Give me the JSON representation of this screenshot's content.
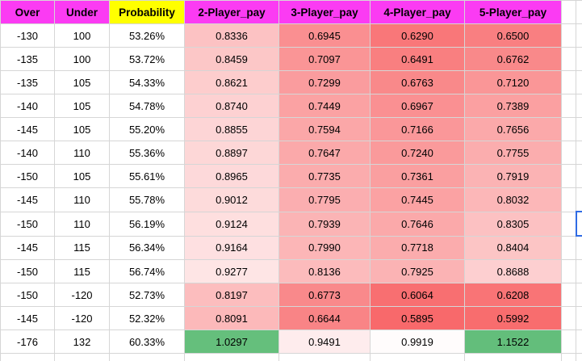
{
  "colors": {
    "header_magenta": "#fb3bf3",
    "header_yellow": "#ffff00",
    "gridline": "#d6d6d6",
    "selection_blue": "#2f6be4",
    "text": "#000000"
  },
  "columns": [
    {
      "key": "over",
      "label": "Over",
      "bg": "magenta"
    },
    {
      "key": "under",
      "label": "Under",
      "bg": "magenta"
    },
    {
      "key": "probability",
      "label": "Probability",
      "bg": "yellow"
    },
    {
      "key": "pay2",
      "label": "2-Player_pay",
      "bg": "magenta"
    },
    {
      "key": "pay3",
      "label": "3-Player_pay",
      "bg": "magenta"
    },
    {
      "key": "pay4",
      "label": "4-Player_pay",
      "bg": "magenta"
    },
    {
      "key": "pay5",
      "label": "5-Player_pay",
      "bg": "magenta"
    },
    {
      "key": "spacer1",
      "label": "",
      "bg": "white"
    },
    {
      "key": "spacer2",
      "label": "",
      "bg": "white"
    }
  ],
  "rows": [
    {
      "over": "-130",
      "under": "100",
      "probability": "53.26%",
      "pays": [
        "0.8336",
        "0.6945",
        "0.6290",
        "0.6500"
      ]
    },
    {
      "over": "-135",
      "under": "100",
      "probability": "53.72%",
      "pays": [
        "0.8459",
        "0.7097",
        "0.6491",
        "0.6762"
      ]
    },
    {
      "over": "-135",
      "under": "105",
      "probability": "54.33%",
      "pays": [
        "0.8621",
        "0.7299",
        "0.6763",
        "0.7120"
      ]
    },
    {
      "over": "-140",
      "under": "105",
      "probability": "54.78%",
      "pays": [
        "0.8740",
        "0.7449",
        "0.6967",
        "0.7389"
      ]
    },
    {
      "over": "-145",
      "under": "105",
      "probability": "55.20%",
      "pays": [
        "0.8855",
        "0.7594",
        "0.7166",
        "0.7656"
      ]
    },
    {
      "over": "-140",
      "under": "110",
      "probability": "55.36%",
      "pays": [
        "0.8897",
        "0.7647",
        "0.7240",
        "0.7755"
      ]
    },
    {
      "over": "-150",
      "under": "105",
      "probability": "55.61%",
      "pays": [
        "0.8965",
        "0.7735",
        "0.7361",
        "0.7919"
      ]
    },
    {
      "over": "-145",
      "under": "110",
      "probability": "55.78%",
      "pays": [
        "0.9012",
        "0.7795",
        "0.7445",
        "0.8032"
      ]
    },
    {
      "over": "-150",
      "under": "110",
      "probability": "56.19%",
      "pays": [
        "0.9124",
        "0.7939",
        "0.7646",
        "0.8305"
      ]
    },
    {
      "over": "-145",
      "under": "115",
      "probability": "56.34%",
      "pays": [
        "0.9164",
        "0.7990",
        "0.7718",
        "0.8404"
      ]
    },
    {
      "over": "-150",
      "under": "115",
      "probability": "56.74%",
      "pays": [
        "0.9277",
        "0.8136",
        "0.7925",
        "0.8688"
      ]
    },
    {
      "over": "-150",
      "under": "-120",
      "probability": "52.73%",
      "pays": [
        "0.8197",
        "0.6773",
        "0.6064",
        "0.6208"
      ]
    },
    {
      "over": "-145",
      "under": "-120",
      "probability": "52.32%",
      "pays": [
        "0.8091",
        "0.6644",
        "0.5895",
        "0.5992"
      ]
    },
    {
      "over": "-176",
      "under": "132",
      "probability": "60.33%",
      "pays": [
        "1.0297",
        "0.9491",
        "0.9919",
        "1.1522"
      ]
    }
  ],
  "conditional_format": {
    "min_value": 0.5895,
    "mid_value": 1.0,
    "max_value": 1.03,
    "min_color": "#F8696B",
    "mid_color": "#FFFFFF",
    "max_color": "#63BE7B"
  },
  "selection_row": 9
}
